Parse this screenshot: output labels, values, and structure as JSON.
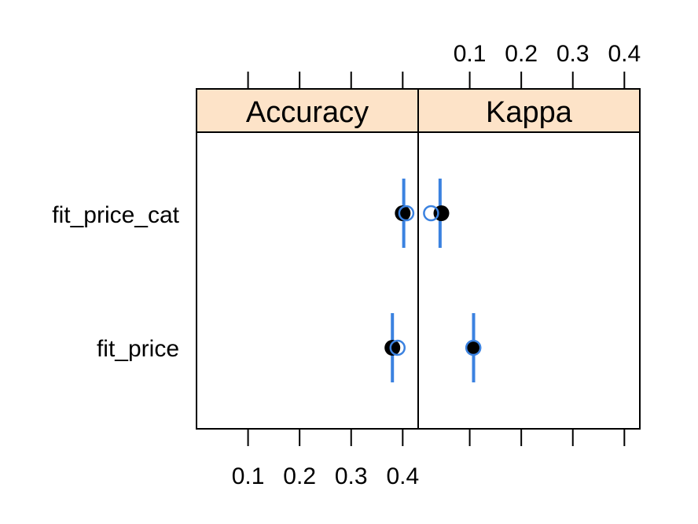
{
  "chart_data": {
    "type": "scatter",
    "categories": [
      "fit_price_cat",
      "fit_price"
    ],
    "panels": [
      {
        "name": "Accuracy",
        "xlim": [
          0,
          0.43
        ],
        "ticks": [
          0.1,
          0.2,
          0.3,
          0.4
        ],
        "tick_labels": [
          "0.1",
          "0.2",
          "0.3",
          "0.4"
        ],
        "tick_labels_side": "bottom",
        "points": [
          {
            "category": "fit_price_cat",
            "ci": [
              0.401,
              0.403
            ],
            "filled": 0.4,
            "open": 0.407
          },
          {
            "category": "fit_price",
            "ci": [
              0.379,
              0.381
            ],
            "filled": 0.38,
            "open": 0.39
          }
        ]
      },
      {
        "name": "Kappa",
        "xlim": [
          0,
          0.43
        ],
        "ticks": [
          0.1,
          0.2,
          0.3,
          0.4
        ],
        "tick_labels": [
          "0.1",
          "0.2",
          "0.3",
          "0.4"
        ],
        "tick_labels_side": "top",
        "points": [
          {
            "category": "fit_price_cat",
            "ci": [
              0.041,
              0.044
            ],
            "filled": 0.045,
            "open": 0.025
          },
          {
            "category": "fit_price",
            "ci": [
              0.106,
              0.109
            ],
            "filled": 0.107,
            "open": 0.107
          }
        ]
      }
    ],
    "colors": {
      "strip": "#fde3c8",
      "interval": "#3b82e0",
      "open_point": "#3b82e0",
      "filled_point": "#000000"
    }
  }
}
